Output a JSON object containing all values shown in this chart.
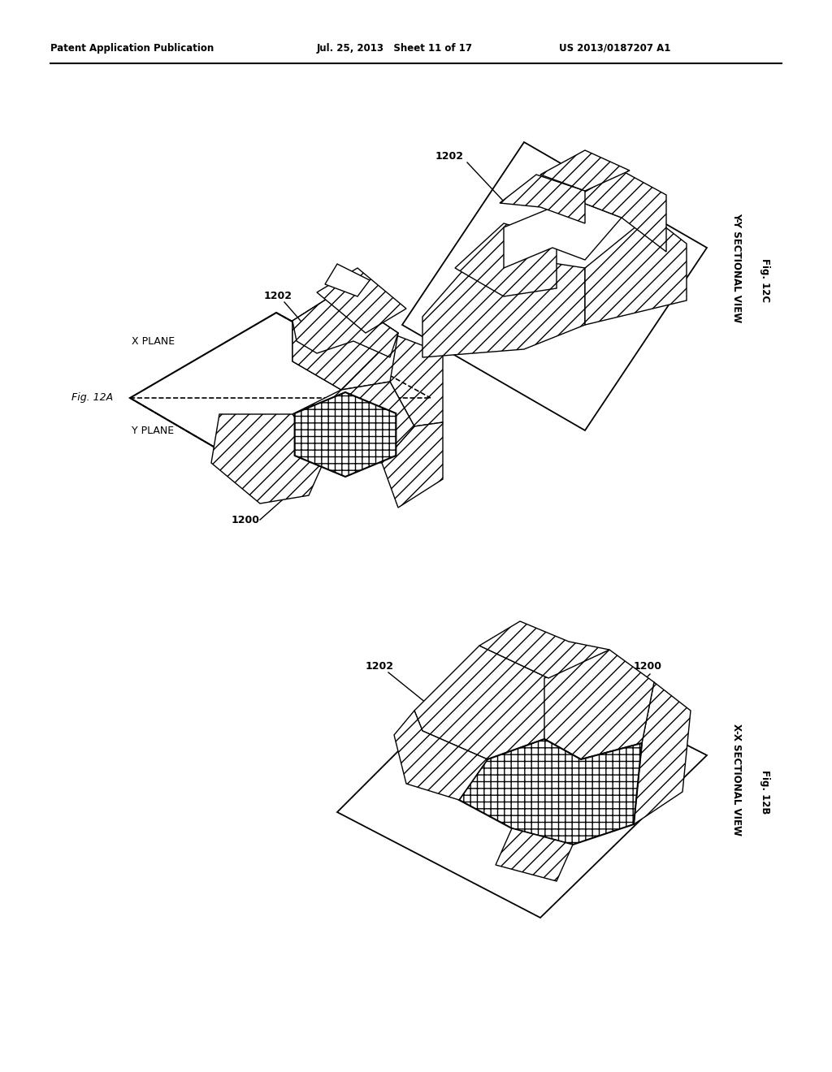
{
  "background_color": "#ffffff",
  "header_left": "Patent Application Publication",
  "header_center": "Jul. 25, 2013   Sheet 11 of 17",
  "header_right": "US 2013/0187207 A1",
  "fig12a_label": "Fig. 12A",
  "fig12b_label": "Fig. 12B",
  "fig12c_label": "Fig. 12C",
  "label_1200": "1200",
  "label_1202": "1202",
  "label_xplane": "X PLANE",
  "label_yplane": "Y PLANE",
  "label_xx_view": "X-X SECTIONAL VIEW",
  "label_yy_view": "Y-Y SECTIONAL VIEW"
}
